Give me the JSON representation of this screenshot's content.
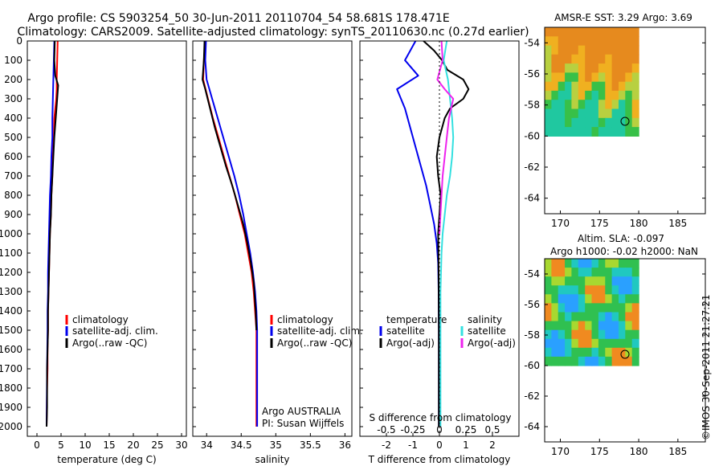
{
  "header": {
    "line1": "Argo profile: CS 5903254_50 30-Jun-2011 20110704_54 58.681S 178.471E",
    "line2": "Climatology: CARS2009. Satellite-adjusted climatology: synTS_20110630.nc (0.27d earlier)"
  },
  "stamp": "©IMOS 30-Sep-2011 21:27:21",
  "colors": {
    "climatology": "#ff0000",
    "satellite": "#0000ee",
    "argo": "#000000",
    "satellite_salinity": "#33e0e0",
    "argo_salinity": "#ee22ee"
  },
  "chart_data": [
    {
      "type": "line",
      "xlabel": "temperature (deg C)",
      "ylabel": "",
      "xlim": [
        -2,
        31
      ],
      "ylim": [
        2050,
        0
      ],
      "xticks": [
        "0",
        "5",
        "10",
        "15",
        "20",
        "25",
        "30"
      ],
      "yticks": [
        "0",
        "100",
        "200",
        "300",
        "400",
        "500",
        "600",
        "700",
        "800",
        "900",
        "1000",
        "1100",
        "1200",
        "1300",
        "1400",
        "1500",
        "1600",
        "1700",
        "1800",
        "1900",
        "2000"
      ],
      "legend": [
        "climatology",
        "satellite-adj. clim.",
        "Argo(..raw -QC)"
      ],
      "legend_position": "lower-center",
      "series": [
        {
          "name": "climatology",
          "color": "#ff0000",
          "x": [
            4.3,
            4.2,
            4.1,
            4.1,
            4.0,
            3.6,
            3.5,
            3.3,
            3.2,
            3.0,
            2.9,
            2.7,
            2.6,
            2.5,
            2.4,
            2.3,
            2.3,
            2.2,
            2.2,
            2.1,
            2.0
          ],
          "y": [
            0,
            100,
            200,
            250,
            300,
            400,
            500,
            600,
            700,
            800,
            900,
            1000,
            1100,
            1200,
            1300,
            1400,
            1500,
            1600,
            1700,
            1800,
            2000
          ]
        },
        {
          "name": "satellite-adj. clim.",
          "color": "#0000ee",
          "x": [
            3.6,
            3.5,
            3.4,
            3.3,
            3.2,
            3.2,
            3.0,
            2.9,
            2.7,
            2.6,
            2.5,
            2.4,
            2.3,
            2.3,
            2.2,
            2.2,
            2.1,
            2.0
          ],
          "y": [
            0,
            100,
            200,
            300,
            400,
            500,
            600,
            700,
            800,
            900,
            1000,
            1100,
            1200,
            1300,
            1400,
            1500,
            1700,
            2000
          ]
        },
        {
          "name": "Argo(..raw -QC)",
          "color": "#000000",
          "x": [
            3.7,
            3.6,
            3.8,
            4.4,
            4.2,
            3.9,
            3.6,
            3.4,
            3.2,
            3.0,
            2.9,
            2.7,
            2.6,
            2.5,
            2.4,
            2.3,
            2.3,
            2.2,
            2.1,
            2.1,
            2.0
          ],
          "y": [
            0,
            100,
            180,
            230,
            300,
            400,
            500,
            600,
            700,
            800,
            900,
            1000,
            1100,
            1200,
            1300,
            1400,
            1500,
            1600,
            1700,
            1900,
            2000
          ]
        }
      ]
    },
    {
      "type": "line",
      "xlabel": "salinity",
      "ylabel": "",
      "xlim": [
        33.8,
        36.1
      ],
      "ylim": [
        2050,
        0
      ],
      "xticks": [
        "34",
        "34.5",
        "35",
        "35.5",
        "36"
      ],
      "legend": [
        "climatology",
        "satellite-adj. clim.",
        "Argo(..raw -QC)"
      ],
      "legend_position": "lower-right",
      "annotations": [
        "Argo AUSTRALIA",
        "PI: Susan Wijffels"
      ],
      "series": [
        {
          "name": "climatology",
          "color": "#ff0000",
          "x": [
            33.98,
            33.96,
            33.95,
            34.02,
            34.09,
            34.17,
            34.25,
            34.33,
            34.41,
            34.48,
            34.55,
            34.6,
            34.65,
            34.68,
            34.7,
            34.72,
            34.72,
            34.72,
            34.72
          ],
          "y": [
            0,
            100,
            200,
            300,
            400,
            500,
            600,
            700,
            800,
            900,
            1000,
            1100,
            1200,
            1300,
            1400,
            1500,
            1600,
            1800,
            2000
          ]
        },
        {
          "name": "satellite-adj. clim.",
          "color": "#0000ee",
          "x": [
            33.99,
            33.98,
            34.0,
            34.08,
            34.16,
            34.24,
            34.32,
            34.4,
            34.47,
            34.53,
            34.58,
            34.63,
            34.67,
            34.7,
            34.72,
            34.73,
            34.73,
            34.73
          ],
          "y": [
            0,
            100,
            200,
            300,
            400,
            500,
            600,
            700,
            800,
            900,
            1000,
            1100,
            1200,
            1300,
            1400,
            1500,
            1700,
            2000
          ]
        },
        {
          "name": "Argo(..raw -QC)",
          "color": "#000000",
          "x": [
            33.97,
            33.96,
            33.94,
            33.98,
            34.05,
            34.12,
            34.2,
            34.28,
            34.37,
            34.45,
            34.53,
            34.59,
            34.64,
            34.68,
            34.71,
            34.72
          ],
          "y": [
            0,
            100,
            200,
            250,
            350,
            450,
            550,
            650,
            750,
            850,
            950,
            1050,
            1150,
            1250,
            1400,
            1500
          ]
        }
      ]
    },
    {
      "type": "line",
      "xlabel": "T difference from climatology",
      "ylabel": "",
      "xlim": [
        -3,
        3
      ],
      "ylim": [
        2050,
        0
      ],
      "xticks": [
        "-2",
        "-1",
        "0",
        "1",
        "2"
      ],
      "secondary_xlabel": "S difference from climatology",
      "secondary_xticks": [
        "-0.5",
        "-0.25",
        "0",
        "0.25",
        "0.5"
      ],
      "legend": [
        "temperature",
        "satellite",
        "Argo(-adj)",
        "salinity",
        "satellite",
        "Argo(-adj)"
      ],
      "legend_position": "lower-center",
      "series": [
        {
          "name": "temperature satellite",
          "color": "#0000ee",
          "x": [
            -0.9,
            -1.3,
            -0.8,
            -1.6,
            -1.3,
            -1.1,
            -0.9,
            -0.7,
            -0.5,
            -0.35,
            -0.2,
            -0.1,
            -0.05,
            -0.03,
            -0.02,
            -0.02,
            -0.02,
            -0.02
          ],
          "y": [
            0,
            100,
            180,
            250,
            350,
            450,
            550,
            650,
            750,
            850,
            950,
            1050,
            1150,
            1300,
            1500,
            1700,
            1900,
            2000
          ]
        },
        {
          "name": "temperature Argo(-adj)",
          "color": "#000000",
          "x": [
            -0.6,
            -0.2,
            0.1,
            0.3,
            0.9,
            1.1,
            0.9,
            0.4,
            0.2,
            0.0,
            -0.1,
            -0.05,
            0.05,
            0.0,
            -0.05,
            -0.03,
            -0.02,
            -0.02
          ],
          "y": [
            0,
            50,
            100,
            150,
            200,
            250,
            300,
            350,
            400,
            500,
            600,
            700,
            800,
            900,
            1000,
            1200,
            1500,
            2000
          ]
        },
        {
          "name": "salinity satellite",
          "color": "#33e0e0",
          "x": [
            0.07,
            0.04,
            0.08,
            0.1,
            0.12,
            0.13,
            0.12,
            0.1,
            0.07,
            0.05,
            0.03,
            0.02,
            0.01,
            0.01,
            0.01
          ],
          "y": [
            0,
            100,
            200,
            300,
            400,
            500,
            600,
            700,
            800,
            900,
            1000,
            1100,
            1300,
            1600,
            2000
          ]
        },
        {
          "name": "salinity Argo(-adj)",
          "color": "#ee22ee",
          "x": [
            0.02,
            0.03,
            -0.02,
            0.05,
            0.13,
            0.09,
            0.07,
            0.05,
            0.03,
            0.02,
            0.01,
            0.0
          ],
          "y": [
            0,
            100,
            200,
            250,
            300,
            400,
            500,
            600,
            700,
            800,
            900,
            1000
          ]
        }
      ]
    },
    {
      "type": "heatmap",
      "title": "AMSR-E SST: 3.29 Argo: 3.69",
      "xlim": [
        168,
        188.5
      ],
      "ylim": [
        -65,
        -53
      ],
      "xticks": [
        "170",
        "175",
        "180",
        "185"
      ],
      "yticks": [
        "-54",
        "-56",
        "-58",
        "-60",
        "-62",
        "-64"
      ],
      "marker": {
        "lon": 178.47,
        "lat": -58.68
      },
      "field_extent": {
        "lon": [
          168,
          180
        ],
        "lat": [
          -60,
          -53
        ]
      }
    },
    {
      "type": "heatmap",
      "title": "Altim. SLA: -0.097",
      "subtitle": "Argo h1000: -0.02 h2000: NaN",
      "xlim": [
        168,
        188.5
      ],
      "ylim": [
        -65,
        -53
      ],
      "xticks": [
        "170",
        "175",
        "180",
        "185"
      ],
      "yticks": [
        "-54",
        "-56",
        "-58",
        "-60",
        "-62",
        "-64"
      ],
      "marker": {
        "lon": 178.47,
        "lat": -58.68
      },
      "field_extent": {
        "lon": [
          168,
          180
        ],
        "lat": [
          -60,
          -53
        ]
      }
    }
  ]
}
